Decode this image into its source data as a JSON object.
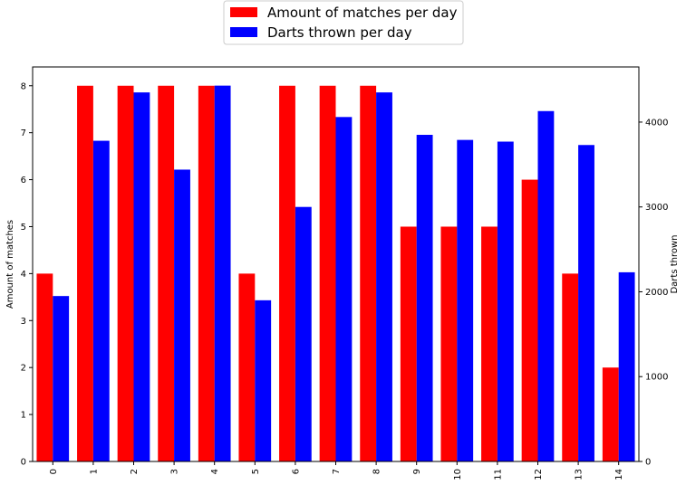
{
  "chart_data": {
    "type": "bar",
    "title": "",
    "xlabel": "",
    "categories": [
      "0",
      "1",
      "2",
      "3",
      "4",
      "5",
      "6",
      "7",
      "8",
      "9",
      "10",
      "11",
      "12",
      "13",
      "14"
    ],
    "series": [
      {
        "name": "Amount of matches per day",
        "axis": "left",
        "color": "#ff0000",
        "values": [
          4,
          8,
          8,
          8,
          8,
          4,
          8,
          8,
          8,
          5,
          5,
          5,
          6,
          4,
          2
        ]
      },
      {
        "name": "Darts thrown per day",
        "axis": "right",
        "color": "#0000ff",
        "values": [
          1950,
          3780,
          4350,
          3440,
          4430,
          1900,
          3000,
          4060,
          4350,
          3850,
          3790,
          3770,
          4130,
          3730,
          2230
        ]
      }
    ],
    "ylabel_left": "Amount of matches",
    "ylabel_right": "Darts thrown",
    "ylim_left": [
      0,
      8.4
    ],
    "ylim_right": [
      0,
      4650
    ],
    "yticks_left": [
      0,
      1,
      2,
      3,
      4,
      5,
      6,
      7,
      8
    ],
    "yticks_right": [
      0,
      1000,
      2000,
      3000,
      4000
    ],
    "legend_position": "top-center",
    "grid": false
  }
}
